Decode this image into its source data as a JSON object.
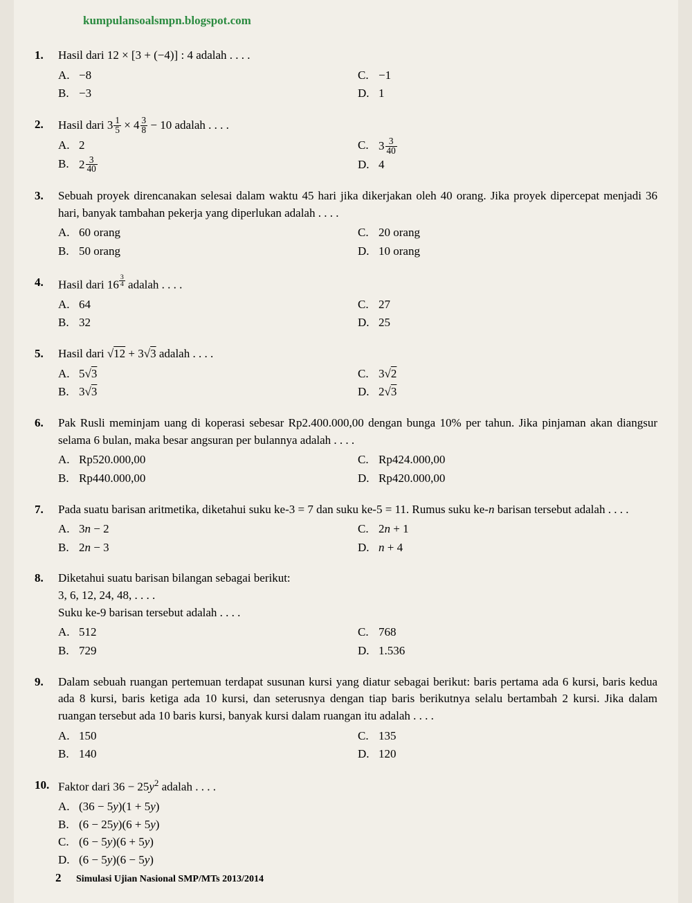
{
  "watermark": "kumpulansoalsmpn.blogspot.com",
  "footer": {
    "page_number": "2",
    "title": "Simulasi Ujian Nasional SMP/MTs 2013/2014"
  },
  "questions": [
    {
      "num": "1.",
      "text": "Hasil dari 12 × [3 + (−4)] : 4 adalah . . . .",
      "options_left": [
        {
          "l": "A.",
          "t": "−8"
        },
        {
          "l": "B.",
          "t": "−3"
        }
      ],
      "options_right": [
        {
          "l": "C.",
          "t": "−1"
        },
        {
          "l": "D.",
          "t": "1"
        }
      ]
    },
    {
      "num": "2.",
      "text_html": "Hasil dari <span class='mixed'><span class='whole'>3</span><span class='frac'><span class='num'>1</span><span class='den'>5</span></span></span> × <span class='mixed'><span class='whole'>4</span><span class='frac'><span class='num'>3</span><span class='den'>8</span></span></span> − 10 adalah . . . .",
      "options_left": [
        {
          "l": "A.",
          "t": "2"
        },
        {
          "l": "B.",
          "html": "<span class='mixed'><span class='whole'>2</span><span class='frac'><span class='num'>3</span><span class='den'>40</span></span></span>"
        }
      ],
      "options_right": [
        {
          "l": "C.",
          "html": "<span class='mixed'><span class='whole'>3</span><span class='frac'><span class='num'>3</span><span class='den'>40</span></span></span>"
        },
        {
          "l": "D.",
          "t": "4"
        }
      ]
    },
    {
      "num": "3.",
      "text": "Sebuah proyek direncanakan selesai dalam waktu 45 hari jika dikerjakan oleh 40 orang. Jika proyek dipercepat menjadi 36 hari, banyak tambahan pekerja yang diperlukan adalah . . . .",
      "options_left": [
        {
          "l": "A.",
          "t": "60 orang"
        },
        {
          "l": "B.",
          "t": "50 orang"
        }
      ],
      "options_right": [
        {
          "l": "C.",
          "t": "20 orang"
        },
        {
          "l": "D.",
          "t": "10 orang"
        }
      ]
    },
    {
      "num": "4.",
      "text_html": "Hasil dari 16<sup><span class='frac'><span class='num'>3</span><span class='den'>4</span></span></sup> adalah . . . .",
      "options_left": [
        {
          "l": "A.",
          "t": "64"
        },
        {
          "l": "B.",
          "t": "32"
        }
      ],
      "options_right": [
        {
          "l": "C.",
          "t": "27"
        },
        {
          "l": "D.",
          "t": "25"
        }
      ]
    },
    {
      "num": "5.",
      "text_html": "Hasil dari <span class='sqrt-sym'></span><span style='text-decoration:overline'>12</span> + 3<span class='sqrt-sym'></span><span style='text-decoration:overline'>3</span> adalah . . . .",
      "options_left": [
        {
          "l": "A.",
          "html": "5<span class='sqrt-sym'></span><span style='text-decoration:overline'>3</span>"
        },
        {
          "l": "B.",
          "html": "3<span class='sqrt-sym'></span><span style='text-decoration:overline'>3</span>"
        }
      ],
      "options_right": [
        {
          "l": "C.",
          "html": "3<span class='sqrt-sym'></span><span style='text-decoration:overline'>2</span>"
        },
        {
          "l": "D.",
          "html": "2<span class='sqrt-sym'></span><span style='text-decoration:overline'>3</span>"
        }
      ]
    },
    {
      "num": "6.",
      "text": "Pak Rusli meminjam uang di koperasi sebesar Rp2.400.000,00 dengan bunga 10% per tahun. Jika pinjaman akan diangsur selama 6 bulan, maka besar angsuran per bulannya adalah . . . .",
      "options_left": [
        {
          "l": "A.",
          "t": "Rp520.000,00"
        },
        {
          "l": "B.",
          "t": "Rp440.000,00"
        }
      ],
      "options_right": [
        {
          "l": "C.",
          "t": "Rp424.000,00"
        },
        {
          "l": "D.",
          "t": "Rp420.000,00"
        }
      ]
    },
    {
      "num": "7.",
      "text_html": "Pada suatu barisan aritmetika, diketahui suku ke-3 = 7 dan suku ke-5 = 11. Rumus suku ke-<i>n</i> barisan tersebut adalah . . . .",
      "options_left": [
        {
          "l": "A.",
          "html": "3<i>n</i> − 2"
        },
        {
          "l": "B.",
          "html": "2<i>n</i> − 3"
        }
      ],
      "options_right": [
        {
          "l": "C.",
          "html": "2<i>n</i> + 1"
        },
        {
          "l": "D.",
          "html": "<i>n</i> + 4"
        }
      ]
    },
    {
      "num": "8.",
      "text_html": "Diketahui suatu barisan bilangan sebagai berikut:<br>3, 6, 12, 24, 48, . . . .<br>Suku ke-9 barisan tersebut adalah . . . .",
      "options_left": [
        {
          "l": "A.",
          "t": "512"
        },
        {
          "l": "B.",
          "t": "729"
        }
      ],
      "options_right": [
        {
          "l": "C.",
          "t": "768"
        },
        {
          "l": "D.",
          "t": "1.536"
        }
      ]
    },
    {
      "num": "9.",
      "text": "Dalam sebuah ruangan pertemuan terdapat susunan kursi yang diatur sebagai berikut: baris pertama ada 6 kursi, baris kedua ada 8 kursi, baris ketiga ada 10 kursi, dan seterusnya dengan tiap baris berikutnya selalu bertambah 2 kursi. Jika dalam ruangan tersebut ada 10 baris kursi, banyak kursi dalam ruangan itu adalah . . . .",
      "options_left": [
        {
          "l": "A.",
          "t": "150"
        },
        {
          "l": "B.",
          "t": "140"
        }
      ],
      "options_right": [
        {
          "l": "C.",
          "t": "135"
        },
        {
          "l": "D.",
          "t": "120"
        }
      ]
    },
    {
      "num": "10.",
      "text_html": "Faktor dari 36 − 25<i>y</i><sup>2</sup> adalah . . . .",
      "single_col": true,
      "options_left": [
        {
          "l": "A.",
          "html": "(36 − 5<i>y</i>)(1 + 5<i>y</i>)"
        },
        {
          "l": "B.",
          "html": "(6 − 25<i>y</i>)(6 + 5<i>y</i>)"
        },
        {
          "l": "C.",
          "html": "(6 − 5<i>y</i>)(6 + 5<i>y</i>)"
        },
        {
          "l": "D.",
          "html": "(6 − 5<i>y</i>)(6 − 5<i>y</i>)"
        }
      ],
      "options_right": []
    }
  ]
}
